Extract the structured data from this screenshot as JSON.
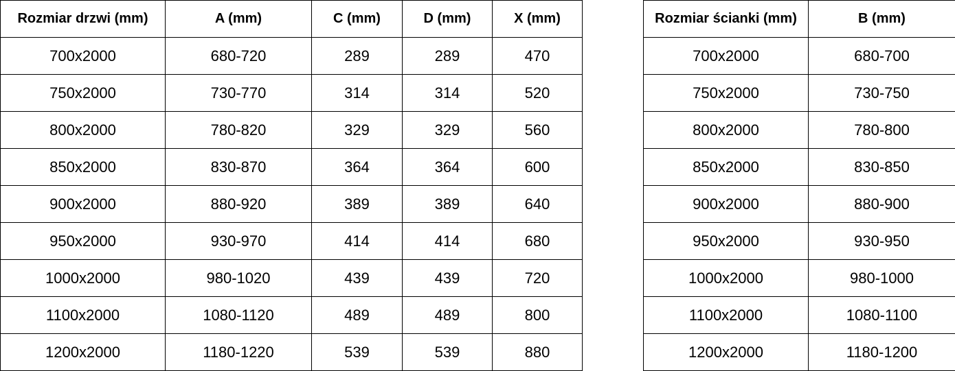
{
  "doors_table": {
    "headers": [
      "Rozmiar drzwi (mm)",
      "A (mm)",
      "C (mm)",
      "D (mm)",
      "X (mm)"
    ],
    "rows": [
      [
        "700x2000",
        "680-720",
        "289",
        "289",
        "470"
      ],
      [
        "750x2000",
        "730-770",
        "314",
        "314",
        "520"
      ],
      [
        "800x2000",
        "780-820",
        "329",
        "329",
        "560"
      ],
      [
        "850x2000",
        "830-870",
        "364",
        "364",
        "600"
      ],
      [
        "900x2000",
        "880-920",
        "389",
        "389",
        "640"
      ],
      [
        "950x2000",
        "930-970",
        "414",
        "414",
        "680"
      ],
      [
        "1000x2000",
        "980-1020",
        "439",
        "439",
        "720"
      ],
      [
        "1100x2000",
        "1080-1120",
        "489",
        "489",
        "800"
      ],
      [
        "1200x2000",
        "1180-1220",
        "539",
        "539",
        "880"
      ]
    ]
  },
  "wall_table": {
    "headers": [
      "Rozmiar ścianki (mm)",
      "B (mm)"
    ],
    "rows": [
      [
        "700x2000",
        "680-700"
      ],
      [
        "750x2000",
        "730-750"
      ],
      [
        "800x2000",
        "780-800"
      ],
      [
        "850x2000",
        "830-850"
      ],
      [
        "900x2000",
        "880-900"
      ],
      [
        "950x2000",
        "930-950"
      ],
      [
        "1000x2000",
        "980-1000"
      ],
      [
        "1100x2000",
        "1080-1100"
      ],
      [
        "1200x2000",
        "1180-1200"
      ]
    ]
  }
}
